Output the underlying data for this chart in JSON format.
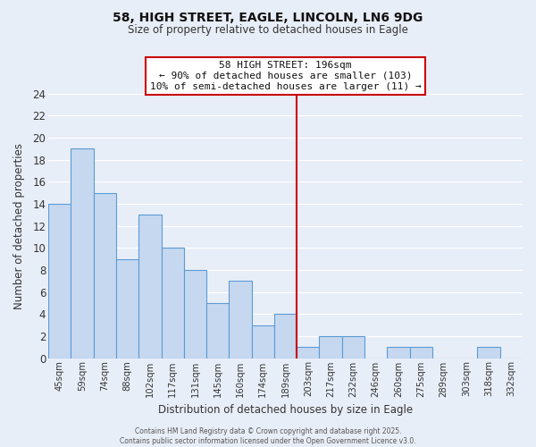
{
  "title": "58, HIGH STREET, EAGLE, LINCOLN, LN6 9DG",
  "subtitle": "Size of property relative to detached houses in Eagle",
  "xlabel": "Distribution of detached houses by size in Eagle",
  "ylabel": "Number of detached properties",
  "bin_labels": [
    "45sqm",
    "59sqm",
    "74sqm",
    "88sqm",
    "102sqm",
    "117sqm",
    "131sqm",
    "145sqm",
    "160sqm",
    "174sqm",
    "189sqm",
    "203sqm",
    "217sqm",
    "232sqm",
    "246sqm",
    "260sqm",
    "275sqm",
    "289sqm",
    "303sqm",
    "318sqm",
    "332sqm"
  ],
  "bar_heights": [
    14,
    19,
    15,
    9,
    13,
    10,
    8,
    5,
    7,
    3,
    4,
    1,
    2,
    2,
    0,
    1,
    1,
    0,
    0,
    1,
    0
  ],
  "bar_color": "#c5d8f0",
  "bar_edge_color": "#5b9bd5",
  "bar_width": 1.0,
  "vline_x": 10.5,
  "vline_color": "#cc0000",
  "annotation_title": "58 HIGH STREET: 196sqm",
  "annotation_line1": "← 90% of detached houses are smaller (103)",
  "annotation_line2": "10% of semi-detached houses are larger (11) →",
  "ylim": [
    0,
    24
  ],
  "yticks": [
    0,
    2,
    4,
    6,
    8,
    10,
    12,
    14,
    16,
    18,
    20,
    22,
    24
  ],
  "background_color": "#e8eef8",
  "grid_color": "#ffffff",
  "footer_line1": "Contains HM Land Registry data © Crown copyright and database right 2025.",
  "footer_line2": "Contains public sector information licensed under the Open Government Licence v3.0."
}
